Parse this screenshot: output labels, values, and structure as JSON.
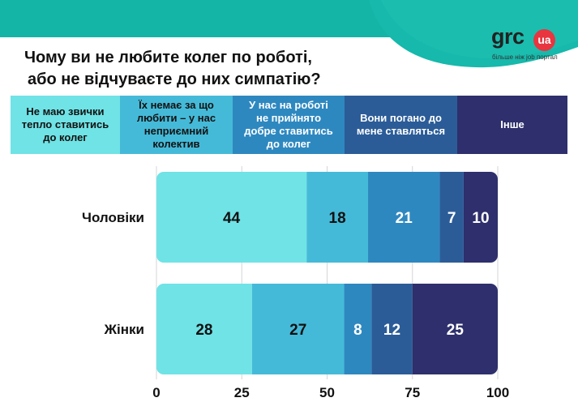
{
  "header": {
    "title_lines": [
      "Чому ви не любите колег по роботі,",
      "або не відчуваєте до них симпатію?"
    ]
  },
  "logo": {
    "name": "grc",
    "badge": "ua",
    "tagline": "більше ніж job портал",
    "badge_color": "#e8353f"
  },
  "legend": [
    {
      "label": "Не маю звички\nтепло ставитись\nдо колег",
      "color": "#6fe3e6",
      "text_color": "#111111"
    },
    {
      "label": "Їх немає за що\nлюбити – у нас\nнеприємний\nколектив",
      "color": "#45bad8",
      "text_color": "#111111"
    },
    {
      "label": "У нас на роботі\nне прийнято\nдобре ставитись\nдо колег",
      "color": "#2e88c0",
      "text_color": "#ffffff"
    },
    {
      "label": "Вони погано до\nмене ставляться",
      "color": "#2b5c98",
      "text_color": "#ffffff"
    },
    {
      "label": "Інше",
      "color": "#2e2f6c",
      "text_color": "#ffffff"
    }
  ],
  "chart_data": {
    "type": "bar",
    "orientation": "horizontal",
    "stacked": true,
    "categories": [
      "Чоловіки",
      "Жінки"
    ],
    "series": [
      {
        "name": "Не маю звички тепло ставитись до колег",
        "values": [
          44,
          28
        ],
        "color": "#6fe3e6",
        "label_color": "#111111"
      },
      {
        "name": "Їх немає за що любити – у нас неприємний колектив",
        "values": [
          18,
          27
        ],
        "color": "#45bad8",
        "label_color": "#111111"
      },
      {
        "name": "У нас на роботі не прийнято добре ставитись до колег",
        "values": [
          21,
          8
        ],
        "color": "#2e88c0",
        "label_color": "#ffffff"
      },
      {
        "name": "Вони погано до мене ставляться",
        "values": [
          7,
          12
        ],
        "color": "#2b5c98",
        "label_color": "#ffffff"
      },
      {
        "name": "Інше",
        "values": [
          10,
          25
        ],
        "color": "#2e2f6c",
        "label_color": "#ffffff"
      }
    ],
    "xlim": [
      0,
      100
    ],
    "xticks": [
      0,
      25,
      50,
      75,
      100
    ],
    "grid": true,
    "legend_position": "top"
  },
  "colors": {
    "teal_band": "#14b5a7",
    "teal_wave": "#16b9ab"
  }
}
